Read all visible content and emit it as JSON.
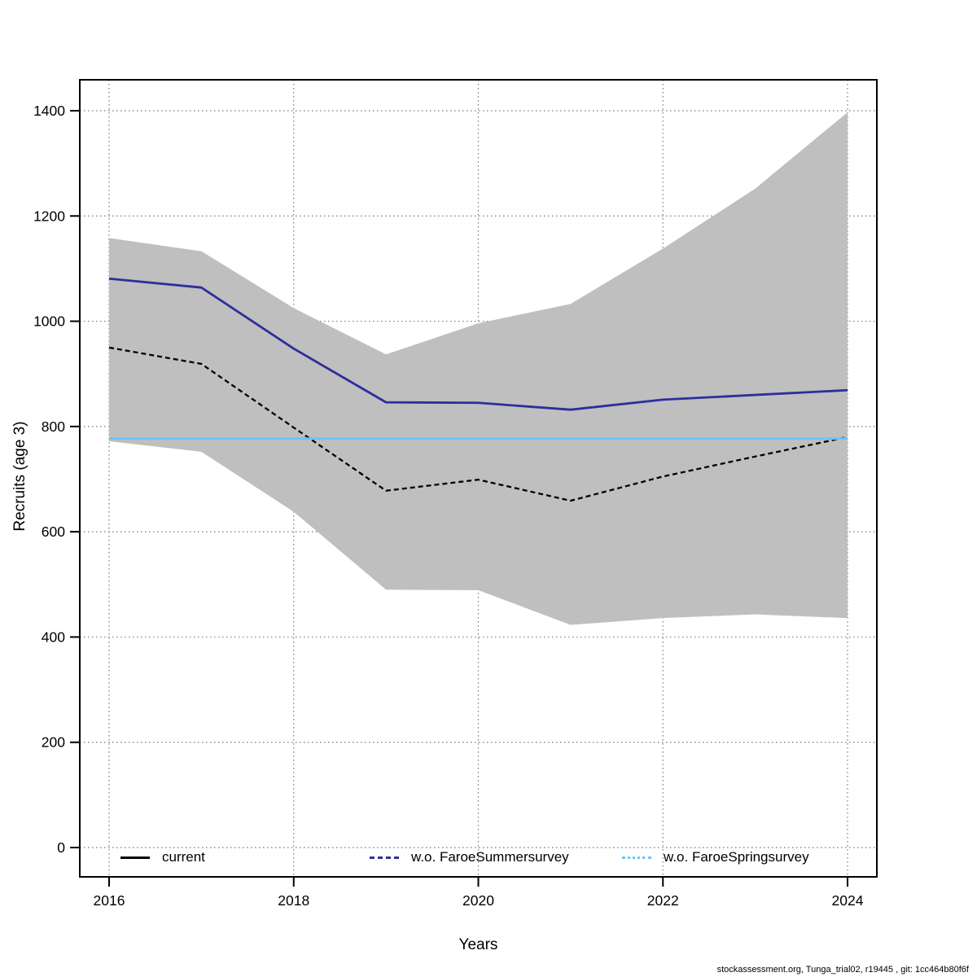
{
  "chart_data": {
    "type": "line",
    "title": "",
    "xlabel": "Years",
    "ylabel": "Recruits (age 3)",
    "x": [
      2016,
      2017,
      2018,
      2019,
      2020,
      2021,
      2022,
      2023,
      2024
    ],
    "x_ticks": [
      2016,
      2018,
      2020,
      2022,
      2024
    ],
    "y_ticks": [
      0,
      200,
      400,
      600,
      800,
      1000,
      1200,
      1400
    ],
    "xlim": [
      2016,
      2024
    ],
    "ylim": [
      0,
      1450
    ],
    "grid": "dotted",
    "legend_position": "bottom-inside",
    "band": {
      "name": "confidence-band",
      "color": "#bfbfbf",
      "upper": [
        1158,
        1133,
        1025,
        937,
        996,
        1033,
        1138,
        1252,
        1397
      ],
      "lower": [
        772,
        752,
        638,
        490,
        489,
        423,
        436,
        443,
        436
      ]
    },
    "series": [
      {
        "name": "current",
        "color": "#000000",
        "style": "dashed",
        "width": 2.3,
        "values": [
          950,
          919,
          798,
          678,
          699,
          659,
          705,
          743,
          780
        ]
      },
      {
        "name": "w.o. FaroeSummersurvey",
        "color": "#2e2e9c",
        "style": "solid",
        "width": 2.8,
        "values": [
          1081,
          1064,
          948,
          846,
          845,
          832,
          851,
          860,
          869
        ]
      },
      {
        "name": "w.o. FaroeSpringsurvey",
        "color": "#6fc4ee",
        "style": "solid",
        "width": 3,
        "values": [
          777,
          777,
          777,
          777,
          777,
          777,
          777,
          777,
          777
        ]
      }
    ],
    "legend": [
      {
        "label": "current"
      },
      {
        "label": "w.o. FaroeSummersurvey"
      },
      {
        "label": "w.o. FaroeSpringsurvey"
      }
    ]
  },
  "footer": {
    "text": "stockassessment.org, Tunga_trial02, r19445 , git: 1cc464b80f6f"
  }
}
